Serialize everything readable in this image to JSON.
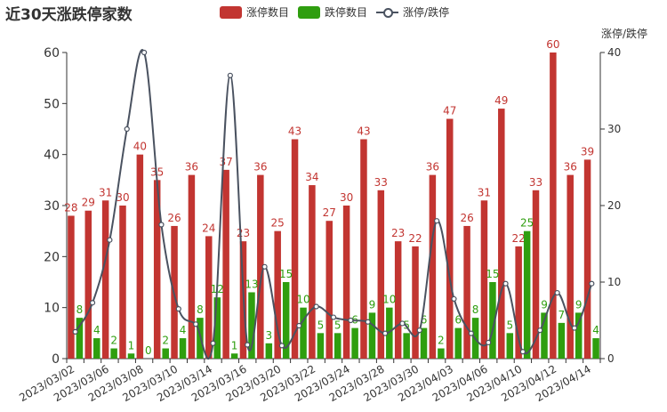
{
  "title": "近30天涨跌停家数",
  "legend": {
    "limit_up": "涨停数目",
    "limit_down": "跌停数目",
    "ratio": "涨停/跌停"
  },
  "colors": {
    "limit_up": "#c23531",
    "limit_down": "#2f9e0f",
    "ratio": "#4a5260"
  },
  "chart_data": {
    "type": "bar",
    "categories": [
      "2023/03/02",
      "2023/03/03",
      "2023/03/06",
      "2023/03/07",
      "2023/03/08",
      "2023/03/09",
      "2023/03/10",
      "2023/03/13",
      "2023/03/14",
      "2023/03/15",
      "2023/03/16",
      "2023/03/17",
      "2023/03/20",
      "2023/03/21",
      "2023/03/22",
      "2023/03/23",
      "2023/03/24",
      "2023/03/27",
      "2023/03/28",
      "2023/03/29",
      "2023/03/30",
      "2023/03/31",
      "2023/04/03",
      "2023/04/04",
      "2023/04/06",
      "2023/04/07",
      "2023/04/10",
      "2023/04/11",
      "2023/04/12",
      "2023/04/13",
      "2023/04/14"
    ],
    "x_tick_labels": [
      "2023/03/02",
      "2023/03/06",
      "2023/03/08",
      "2023/03/10",
      "2023/03/14",
      "2023/03/16",
      "2023/03/20",
      "2023/03/22",
      "2023/03/24",
      "2023/03/28",
      "2023/03/30",
      "2023/04/03",
      "2023/04/06",
      "2023/04/10",
      "2023/04/12",
      "2023/04/14"
    ],
    "series": [
      {
        "name": "涨停数目",
        "type": "bar",
        "axis": "left",
        "values": [
          28,
          29,
          31,
          30,
          40,
          35,
          26,
          36,
          24,
          37,
          23,
          36,
          25,
          43,
          34,
          27,
          30,
          43,
          33,
          23,
          22,
          36,
          47,
          26,
          31,
          49,
          22,
          33,
          60,
          36,
          39
        ]
      },
      {
        "name": "跌停数目",
        "type": "bar",
        "axis": "left",
        "values": [
          8,
          4,
          2,
          1,
          0,
          2,
          4,
          8,
          12,
          1,
          13,
          3,
          15,
          10,
          5,
          5,
          6,
          9,
          10,
          5,
          6,
          2,
          6,
          8,
          15,
          5,
          25,
          9,
          7,
          9,
          4
        ]
      },
      {
        "name": "涨停/跌停",
        "type": "line",
        "axis": "right",
        "smooth": true,
        "values": [
          3.5,
          7.3,
          15.5,
          30,
          40,
          17.5,
          6.5,
          4.5,
          2,
          37,
          1.8,
          12,
          1.7,
          4.3,
          6.8,
          5.4,
          5,
          4.8,
          3.3,
          4.6,
          3.7,
          18,
          7.8,
          3.3,
          2.1,
          9.8,
          0.9,
          3.7,
          8.6,
          4,
          9.8
        ]
      }
    ],
    "y_left": {
      "min": 0,
      "max": 60,
      "ticks": [
        0,
        10,
        20,
        30,
        40,
        50,
        60
      ]
    },
    "y_right": {
      "label": "涨停/跌停",
      "min": 0,
      "max": 40,
      "ticks": [
        0,
        10,
        20,
        30,
        40
      ]
    },
    "grid": false,
    "legend_position": "top-center"
  }
}
